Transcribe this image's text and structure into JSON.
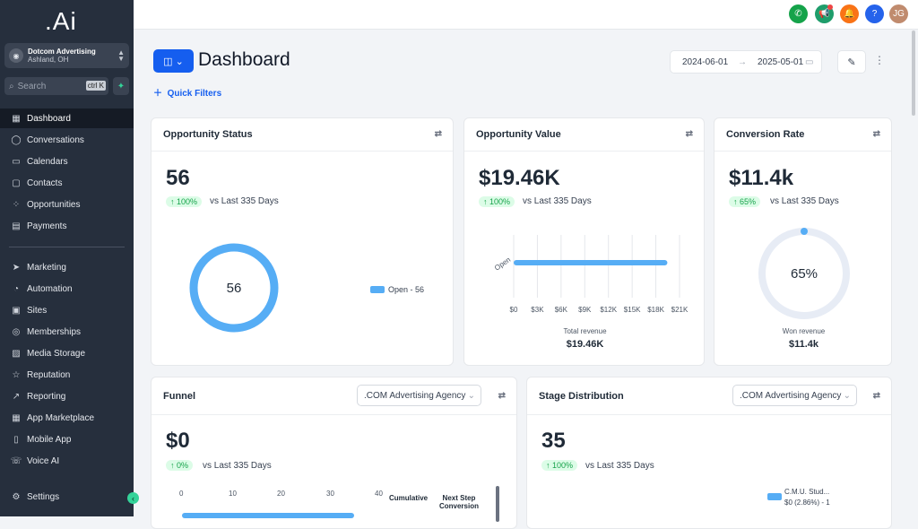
{
  "app": {
    "logo": ".Ai"
  },
  "location": {
    "name": "Dotcom Advertising",
    "city": "Ashland, OH"
  },
  "search": {
    "placeholder": "Search",
    "shortcut": "ctrl K"
  },
  "nav": [
    {
      "label": "Dashboard",
      "icon": "grid-icon",
      "glyph": "▦"
    },
    {
      "label": "Conversations",
      "icon": "chat-icon",
      "glyph": "◯"
    },
    {
      "label": "Calendars",
      "icon": "calendar-icon",
      "glyph": "▭"
    },
    {
      "label": "Contacts",
      "icon": "contacts-icon",
      "glyph": "▢"
    },
    {
      "label": "Opportunities",
      "icon": "opportunities-icon",
      "glyph": "⁘"
    },
    {
      "label": "Payments",
      "icon": "payments-icon",
      "glyph": "▤"
    },
    {
      "label": "Marketing",
      "icon": "send-icon",
      "glyph": "➤"
    },
    {
      "label": "Automation",
      "icon": "automation-icon",
      "glyph": "◔"
    },
    {
      "label": "Sites",
      "icon": "sites-icon",
      "glyph": "▣"
    },
    {
      "label": "Memberships",
      "icon": "memberships-icon",
      "glyph": "◎"
    },
    {
      "label": "Media Storage",
      "icon": "media-icon",
      "glyph": "▨"
    },
    {
      "label": "Reputation",
      "icon": "star-icon",
      "glyph": "☆"
    },
    {
      "label": "Reporting",
      "icon": "trend-icon",
      "glyph": "↗"
    },
    {
      "label": "App Marketplace",
      "icon": "apps-icon",
      "glyph": "▦"
    },
    {
      "label": "Mobile App",
      "icon": "mobile-icon",
      "glyph": "▯"
    },
    {
      "label": "Voice AI",
      "icon": "phone-icon",
      "glyph": "☏"
    },
    {
      "label": "Settings",
      "icon": "gear-icon",
      "glyph": "⚙"
    }
  ],
  "topbar": {
    "avatar_initials": "JG"
  },
  "page": {
    "title": "Dashboard",
    "quick_filters": "Quick Filters"
  },
  "date_range": {
    "start": "2024-06-01",
    "end": "2025-05-01"
  },
  "cards": {
    "opportunity_status": {
      "title": "Opportunity Status",
      "value": "56",
      "change": "↑ 100%",
      "vs": "vs Last 335 Days",
      "donut_center": "56",
      "legend": "Open - 56"
    },
    "opportunity_value": {
      "title": "Opportunity Value",
      "value": "$19.46K",
      "change": "↑ 100%",
      "vs": "vs Last 335 Days",
      "ylabel": "Open",
      "xticks": [
        "$0",
        "$3K",
        "$6K",
        "$9K",
        "$12K",
        "$15K",
        "$18K",
        "$21K"
      ],
      "footer_label": "Total revenue",
      "footer_value": "$19.46K"
    },
    "conversion_rate": {
      "title": "Conversion Rate",
      "value": "$11.4k",
      "change": "↑ 65%",
      "vs": "vs Last 335 Days",
      "gauge": "65%",
      "footer_label": "Won revenue",
      "footer_value": "$11.4k"
    },
    "funnel": {
      "title": "Funnel",
      "select": ".COM Advertising Agency",
      "value": "$0",
      "change": "↑ 0%",
      "vs": "vs Last 335 Days",
      "xticks": [
        "0",
        "10",
        "20",
        "30",
        "40"
      ],
      "col1": "Cumulative",
      "col2": "Next Step Conversion"
    },
    "stage_distribution": {
      "title": "Stage Distribution",
      "select": ".COM Advertising Agency",
      "value": "35",
      "change": "↑ 100%",
      "vs": "vs Last 335 Days",
      "legend_name": "C.M.U. Stud...",
      "legend_value": "$0 (2.86%) - 1"
    }
  },
  "chart_data": [
    {
      "type": "pie",
      "categories": [
        "Open"
      ],
      "values": [
        56
      ]
    },
    {
      "type": "bar",
      "categories": [
        "Open"
      ],
      "values": [
        19460
      ],
      "xlim": [
        0,
        21000
      ],
      "xlabel": "",
      "ylabel": ""
    },
    {
      "type": "pie",
      "categories": [
        "Won"
      ],
      "values": [
        65
      ]
    }
  ],
  "colors": {
    "accent": "#155eef",
    "sidebar": "#262f3d",
    "chart": "#56adf5",
    "success": "#16a34a"
  }
}
